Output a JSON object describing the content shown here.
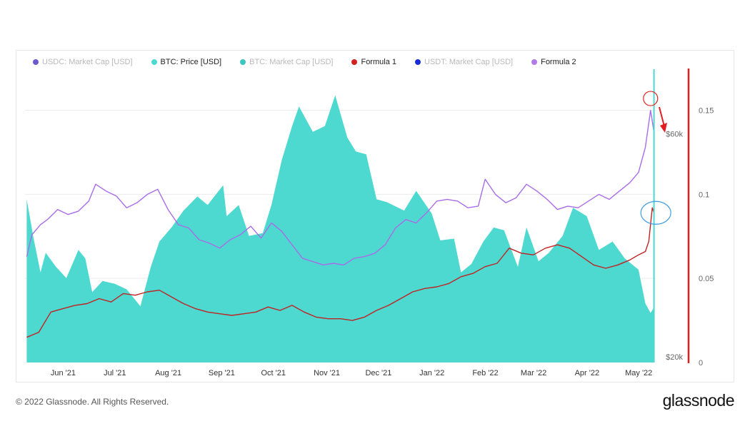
{
  "footer": {
    "copyright": "© 2022 Glassnode. All Rights Reserved.",
    "brand": "glassnode"
  },
  "legend": [
    {
      "label": "USDC: Market Cap [USD]",
      "color": "#6a5acd",
      "active": false
    },
    {
      "label": "BTC: Price [USD]",
      "color": "#4dd9d0",
      "active": true
    },
    {
      "label": "BTC: Market Cap [USD]",
      "color": "#3cc6bd",
      "active": false
    },
    {
      "label": "Formula 1",
      "color": "#d62020",
      "active": true
    },
    {
      "label": "USDT: Market Cap [USD]",
      "color": "#1a2cd6",
      "active": false
    },
    {
      "label": "Formula 2",
      "color": "#b07ae8",
      "active": true
    }
  ],
  "chart_data": {
    "type": "area",
    "x_tick_labels": [
      "Jun '21",
      "Jul '21",
      "Aug '21",
      "Sep '21",
      "Oct '21",
      "Nov '21",
      "Dec '21",
      "Jan '22",
      "Feb '22",
      "Mar '22",
      "Apr '22",
      "May '22"
    ],
    "y_left": {
      "ticks": [
        "$20k",
        "$60k"
      ],
      "tick_values": [
        20000,
        60000
      ],
      "range": [
        20000,
        72000
      ]
    },
    "y_right": {
      "ticks": [
        "0",
        "0.05",
        "0.1",
        "0.15"
      ],
      "tick_values": [
        0,
        0.05,
        0.1,
        0.15
      ],
      "range": [
        0,
        0.174
      ]
    },
    "series": [
      {
        "name": "BTC: Price [USD]",
        "axis": "left",
        "color": "#4dd9d0",
        "style": "area",
        "x": [
          "2021-05-15",
          "2021-05-19",
          "2021-05-23",
          "2021-05-26",
          "2021-06-01",
          "2021-06-07",
          "2021-06-14",
          "2021-06-18",
          "2021-06-22",
          "2021-06-28",
          "2021-07-05",
          "2021-07-12",
          "2021-07-20",
          "2021-07-26",
          "2021-07-31",
          "2021-08-07",
          "2021-08-14",
          "2021-08-22",
          "2021-08-28",
          "2021-09-06",
          "2021-09-08",
          "2021-09-15",
          "2021-09-21",
          "2021-09-29",
          "2021-10-04",
          "2021-10-10",
          "2021-10-16",
          "2021-10-20",
          "2021-10-28",
          "2021-11-04",
          "2021-11-10",
          "2021-11-17",
          "2021-11-22",
          "2021-11-28",
          "2021-12-04",
          "2021-12-10",
          "2021-12-20",
          "2021-12-27",
          "2022-01-05",
          "2022-01-10",
          "2022-01-18",
          "2022-01-22",
          "2022-01-28",
          "2022-02-04",
          "2022-02-10",
          "2022-02-16",
          "2022-02-24",
          "2022-03-01",
          "2022-03-08",
          "2022-03-14",
          "2022-03-22",
          "2022-03-28",
          "2022-04-05",
          "2022-04-12",
          "2022-04-20",
          "2022-04-27",
          "2022-05-05",
          "2022-05-09",
          "2022-05-12",
          "2022-05-14"
        ],
        "y": [
          49000,
          42000,
          36000,
          39500,
          37000,
          35000,
          40000,
          38500,
          32500,
          34500,
          34000,
          33000,
          30000,
          37000,
          41500,
          44000,
          47000,
          49500,
          48000,
          51500,
          46000,
          48000,
          42500,
          43000,
          48000,
          56000,
          62000,
          65500,
          61000,
          62000,
          67500,
          60000,
          57500,
          57000,
          49000,
          48500,
          47000,
          50500,
          46500,
          41700,
          42000,
          36000,
          37500,
          41500,
          44000,
          43500,
          37000,
          44000,
          38000,
          39500,
          42500,
          47500,
          46000,
          40000,
          41500,
          38500,
          36500,
          30500,
          28800,
          29800
        ]
      },
      {
        "name": "Formula 1",
        "axis": "right",
        "color": "#c02222",
        "style": "line",
        "x": [
          "2021-05-15",
          "2021-05-22",
          "2021-05-29",
          "2021-06-05",
          "2021-06-12",
          "2021-06-19",
          "2021-06-26",
          "2021-07-03",
          "2021-07-10",
          "2021-07-17",
          "2021-07-24",
          "2021-07-31",
          "2021-08-07",
          "2021-08-14",
          "2021-08-21",
          "2021-08-28",
          "2021-09-04",
          "2021-09-11",
          "2021-09-18",
          "2021-09-25",
          "2021-10-02",
          "2021-10-09",
          "2021-10-16",
          "2021-10-23",
          "2021-10-30",
          "2021-11-06",
          "2021-11-13",
          "2021-11-20",
          "2021-11-27",
          "2021-12-04",
          "2021-12-11",
          "2021-12-18",
          "2021-12-25",
          "2022-01-01",
          "2022-01-08",
          "2022-01-15",
          "2022-01-22",
          "2022-01-29",
          "2022-02-05",
          "2022-02-12",
          "2022-02-19",
          "2022-02-26",
          "2022-03-05",
          "2022-03-12",
          "2022-03-19",
          "2022-03-26",
          "2022-04-02",
          "2022-04-09",
          "2022-04-16",
          "2022-04-23",
          "2022-04-30",
          "2022-05-05",
          "2022-05-09",
          "2022-05-11",
          "2022-05-13",
          "2022-05-14"
        ],
        "y": [
          0.015,
          0.018,
          0.03,
          0.032,
          0.034,
          0.035,
          0.038,
          0.036,
          0.041,
          0.04,
          0.042,
          0.043,
          0.039,
          0.035,
          0.032,
          0.03,
          0.029,
          0.028,
          0.029,
          0.03,
          0.033,
          0.031,
          0.034,
          0.03,
          0.027,
          0.026,
          0.026,
          0.025,
          0.027,
          0.031,
          0.034,
          0.038,
          0.042,
          0.044,
          0.045,
          0.047,
          0.051,
          0.053,
          0.057,
          0.059,
          0.068,
          0.065,
          0.064,
          0.068,
          0.07,
          0.068,
          0.063,
          0.058,
          0.056,
          0.058,
          0.061,
          0.064,
          0.066,
          0.072,
          0.092,
          0.089
        ]
      },
      {
        "name": "Formula 2",
        "axis": "right",
        "color": "#a86de6",
        "style": "line",
        "x": [
          "2021-05-15",
          "2021-05-18",
          "2021-05-23",
          "2021-05-27",
          "2021-06-02",
          "2021-06-08",
          "2021-06-14",
          "2021-06-20",
          "2021-06-24",
          "2021-06-30",
          "2021-07-06",
          "2021-07-12",
          "2021-07-18",
          "2021-07-24",
          "2021-07-30",
          "2021-08-05",
          "2021-08-11",
          "2021-08-17",
          "2021-08-23",
          "2021-08-29",
          "2021-09-04",
          "2021-09-10",
          "2021-09-16",
          "2021-09-22",
          "2021-09-28",
          "2021-10-04",
          "2021-10-10",
          "2021-10-16",
          "2021-10-22",
          "2021-10-28",
          "2021-11-03",
          "2021-11-09",
          "2021-11-15",
          "2021-11-21",
          "2021-11-27",
          "2021-12-03",
          "2021-12-09",
          "2021-12-15",
          "2021-12-21",
          "2021-12-27",
          "2022-01-02",
          "2022-01-08",
          "2022-01-14",
          "2022-01-20",
          "2022-01-26",
          "2022-02-01",
          "2022-02-05",
          "2022-02-11",
          "2022-02-17",
          "2022-02-23",
          "2022-03-01",
          "2022-03-07",
          "2022-03-13",
          "2022-03-19",
          "2022-03-25",
          "2022-03-31",
          "2022-04-06",
          "2022-04-12",
          "2022-04-18",
          "2022-04-24",
          "2022-04-30",
          "2022-05-05",
          "2022-05-09",
          "2022-05-12",
          "2022-05-14"
        ],
        "y": [
          0.063,
          0.076,
          0.082,
          0.085,
          0.091,
          0.088,
          0.09,
          0.096,
          0.106,
          0.102,
          0.099,
          0.092,
          0.095,
          0.1,
          0.103,
          0.091,
          0.082,
          0.08,
          0.073,
          0.071,
          0.068,
          0.073,
          0.076,
          0.081,
          0.074,
          0.083,
          0.078,
          0.07,
          0.062,
          0.06,
          0.058,
          0.059,
          0.058,
          0.062,
          0.063,
          0.065,
          0.07,
          0.08,
          0.085,
          0.083,
          0.089,
          0.096,
          0.097,
          0.096,
          0.092,
          0.093,
          0.109,
          0.1,
          0.095,
          0.098,
          0.106,
          0.102,
          0.097,
          0.091,
          0.093,
          0.092,
          0.096,
          0.1,
          0.097,
          0.102,
          0.107,
          0.113,
          0.128,
          0.15,
          0.137
        ]
      }
    ],
    "annotations": [
      {
        "type": "circle",
        "color": "#e02020",
        "x": "2022-05-12",
        "y": 0.157,
        "axis": "right",
        "description": "peak of Formula 2"
      },
      {
        "type": "circle",
        "color": "#3a9be0",
        "x": "2022-05-13",
        "y": 0.089,
        "axis": "right",
        "description": "spike of Formula 1"
      },
      {
        "type": "arrow",
        "color": "#e02020",
        "description": "red arrow pointing down"
      },
      {
        "type": "vertical-line",
        "color": "#e02020",
        "description": "red vertical bar on right axis"
      },
      {
        "type": "vertical-line",
        "color": "#4dd9d0",
        "description": "cyan cursor line at latest date"
      }
    ],
    "grid": true,
    "legend_position": "top-left"
  }
}
